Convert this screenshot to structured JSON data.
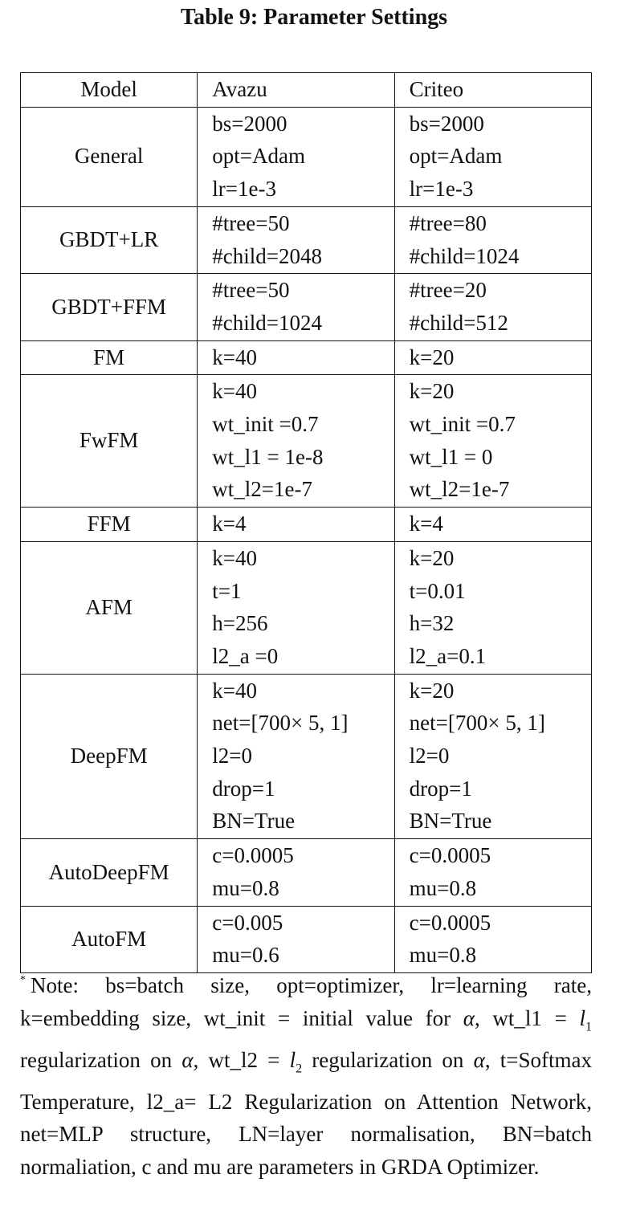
{
  "title": "Table 9: Parameter Settings",
  "table": {
    "headers": [
      "Model",
      "Avazu",
      "Criteo"
    ],
    "rows": [
      {
        "model": "General",
        "avazu": [
          "bs=2000",
          "opt=Adam",
          "lr=1e-3"
        ],
        "criteo": [
          "bs=2000",
          "opt=Adam",
          "lr=1e-3"
        ]
      },
      {
        "model": "GBDT+LR",
        "avazu": [
          "#tree=50",
          "#child=2048"
        ],
        "criteo": [
          "#tree=80",
          "#child=1024"
        ]
      },
      {
        "model": "GBDT+FFM",
        "avazu": [
          "#tree=50",
          "#child=1024"
        ],
        "criteo": [
          "#tree=20",
          "#child=512"
        ]
      },
      {
        "model": "FM",
        "avazu": [
          "k=40"
        ],
        "criteo": [
          "k=20"
        ]
      },
      {
        "model": "FwFM",
        "avazu": [
          "k=40",
          "wt_init =0.7",
          "wt_l1 = 1e-8",
          "wt_l2=1e-7"
        ],
        "criteo": [
          "k=20",
          "wt_init =0.7",
          "wt_l1 = 0",
          "wt_l2=1e-7"
        ]
      },
      {
        "model": "FFM",
        "avazu": [
          "k=4"
        ],
        "criteo": [
          "k=4"
        ]
      },
      {
        "model": "AFM",
        "avazu": [
          "k=40",
          "t=1",
          "h=256",
          "l2_a =0"
        ],
        "criteo": [
          "k=20",
          "t=0.01",
          "h=32",
          "l2_a=0.1"
        ]
      },
      {
        "model": "DeepFM",
        "avazu": [
          "k=40",
          "net=[700× 5, 1]",
          "l2=0",
          "drop=1",
          "BN=True"
        ],
        "criteo": [
          "k=20",
          "net=[700× 5, 1]",
          "l2=0",
          "drop=1",
          "BN=True"
        ]
      },
      {
        "model": "AutoDeepFM",
        "avazu": [
          "c=0.0005",
          "mu=0.8"
        ],
        "criteo": [
          "c=0.0005",
          "mu=0.8"
        ]
      },
      {
        "model": "AutoFM",
        "avazu": [
          "c=0.005",
          "mu=0.6"
        ],
        "criteo": [
          "c=0.0005",
          "mu=0.8"
        ]
      }
    ]
  },
  "note": {
    "marker": "*",
    "p1": "Note: bs=batch size, opt=optimizer, lr=learning rate, k=embedding size, wt_init = initial value for ",
    "alpha": "α",
    "p2": ", wt_l1 = ",
    "l": "l",
    "sub1": "1",
    "p3": " regularization on ",
    "p4": ", wt_l2 = ",
    "sub2": "2",
    "p5": " regularization on ",
    "p6": ", t=Softmax Temperature, l2_a= L2 Regularization on Attention Network, net=MLP structure, LN=layer normalisation, BN=batch normaliation, c and mu are parameters in GRDA Optimizer."
  }
}
